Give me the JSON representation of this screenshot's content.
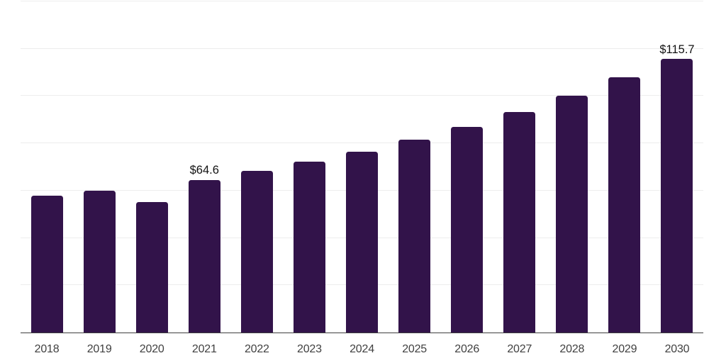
{
  "chart_data": {
    "type": "bar",
    "categories": [
      "2018",
      "2019",
      "2020",
      "2021",
      "2022",
      "2023",
      "2024",
      "2025",
      "2026",
      "2027",
      "2028",
      "2029",
      "2030"
    ],
    "values": [
      57.8,
      60.1,
      55.3,
      64.6,
      68.3,
      72.3,
      76.4,
      81.4,
      86.9,
      93.2,
      100.1,
      107.9,
      115.7
    ],
    "data_labels": [
      "",
      "",
      "",
      "$64.6",
      "",
      "",
      "",
      "",
      "",
      "",
      "",
      "",
      "$115.7"
    ],
    "ylim": [
      0,
      140
    ],
    "gridline_step": 20,
    "grid": true,
    "legend_position": "none",
    "xlabel": "",
    "ylabel": "",
    "colors": {
      "bar": "#32134a",
      "gridline": "#ededed",
      "axis_line": "#3f3f3f",
      "tick_label": "#404040",
      "data_label": "#121212",
      "background": "#ffffff"
    }
  }
}
